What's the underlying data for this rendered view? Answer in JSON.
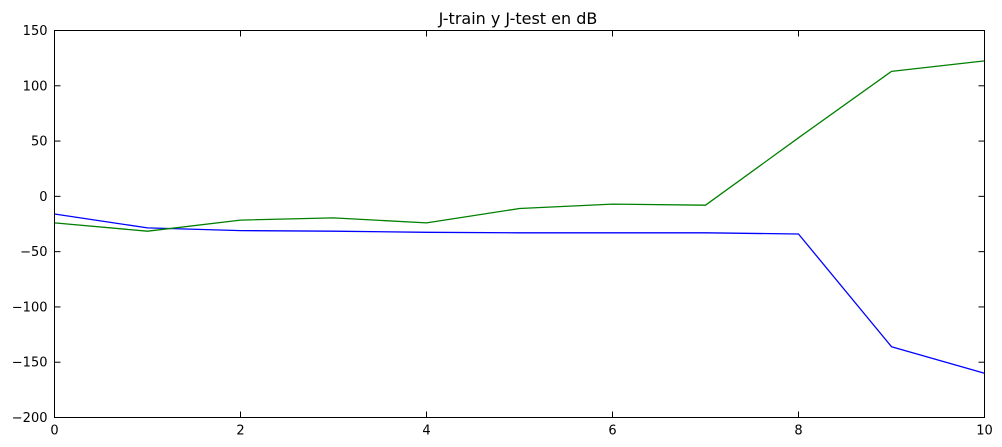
{
  "chart_data": {
    "type": "line",
    "title": "J-train y J-test en dB",
    "xlabel": "",
    "ylabel": "",
    "xlim": [
      0,
      10
    ],
    "ylim": [
      -200,
      150
    ],
    "xticks": [
      0,
      2,
      4,
      6,
      8,
      10
    ],
    "yticks": [
      150,
      100,
      50,
      0,
      -50,
      -100,
      -150,
      -200
    ],
    "xtick_labels": [
      "0",
      "2",
      "4",
      "6",
      "8",
      "10"
    ],
    "ytick_labels": [
      "150",
      "100",
      "50",
      "0",
      "−50",
      "−100",
      "−150",
      "−200"
    ],
    "grid": false,
    "x": [
      0,
      1,
      2,
      3,
      4,
      5,
      6,
      7,
      8,
      9,
      10
    ],
    "series": [
      {
        "color": "#0000ff",
        "values": [
          -16,
          -28.5,
          -31,
          -31.5,
          -32.5,
          -33,
          -33,
          -33,
          -34,
          -136,
          -160
        ]
      },
      {
        "color": "#008000",
        "values": [
          -24,
          -31.5,
          -21.5,
          -19.5,
          -24,
          -11,
          -7,
          -8,
          53,
          113,
          122.5
        ]
      }
    ]
  }
}
